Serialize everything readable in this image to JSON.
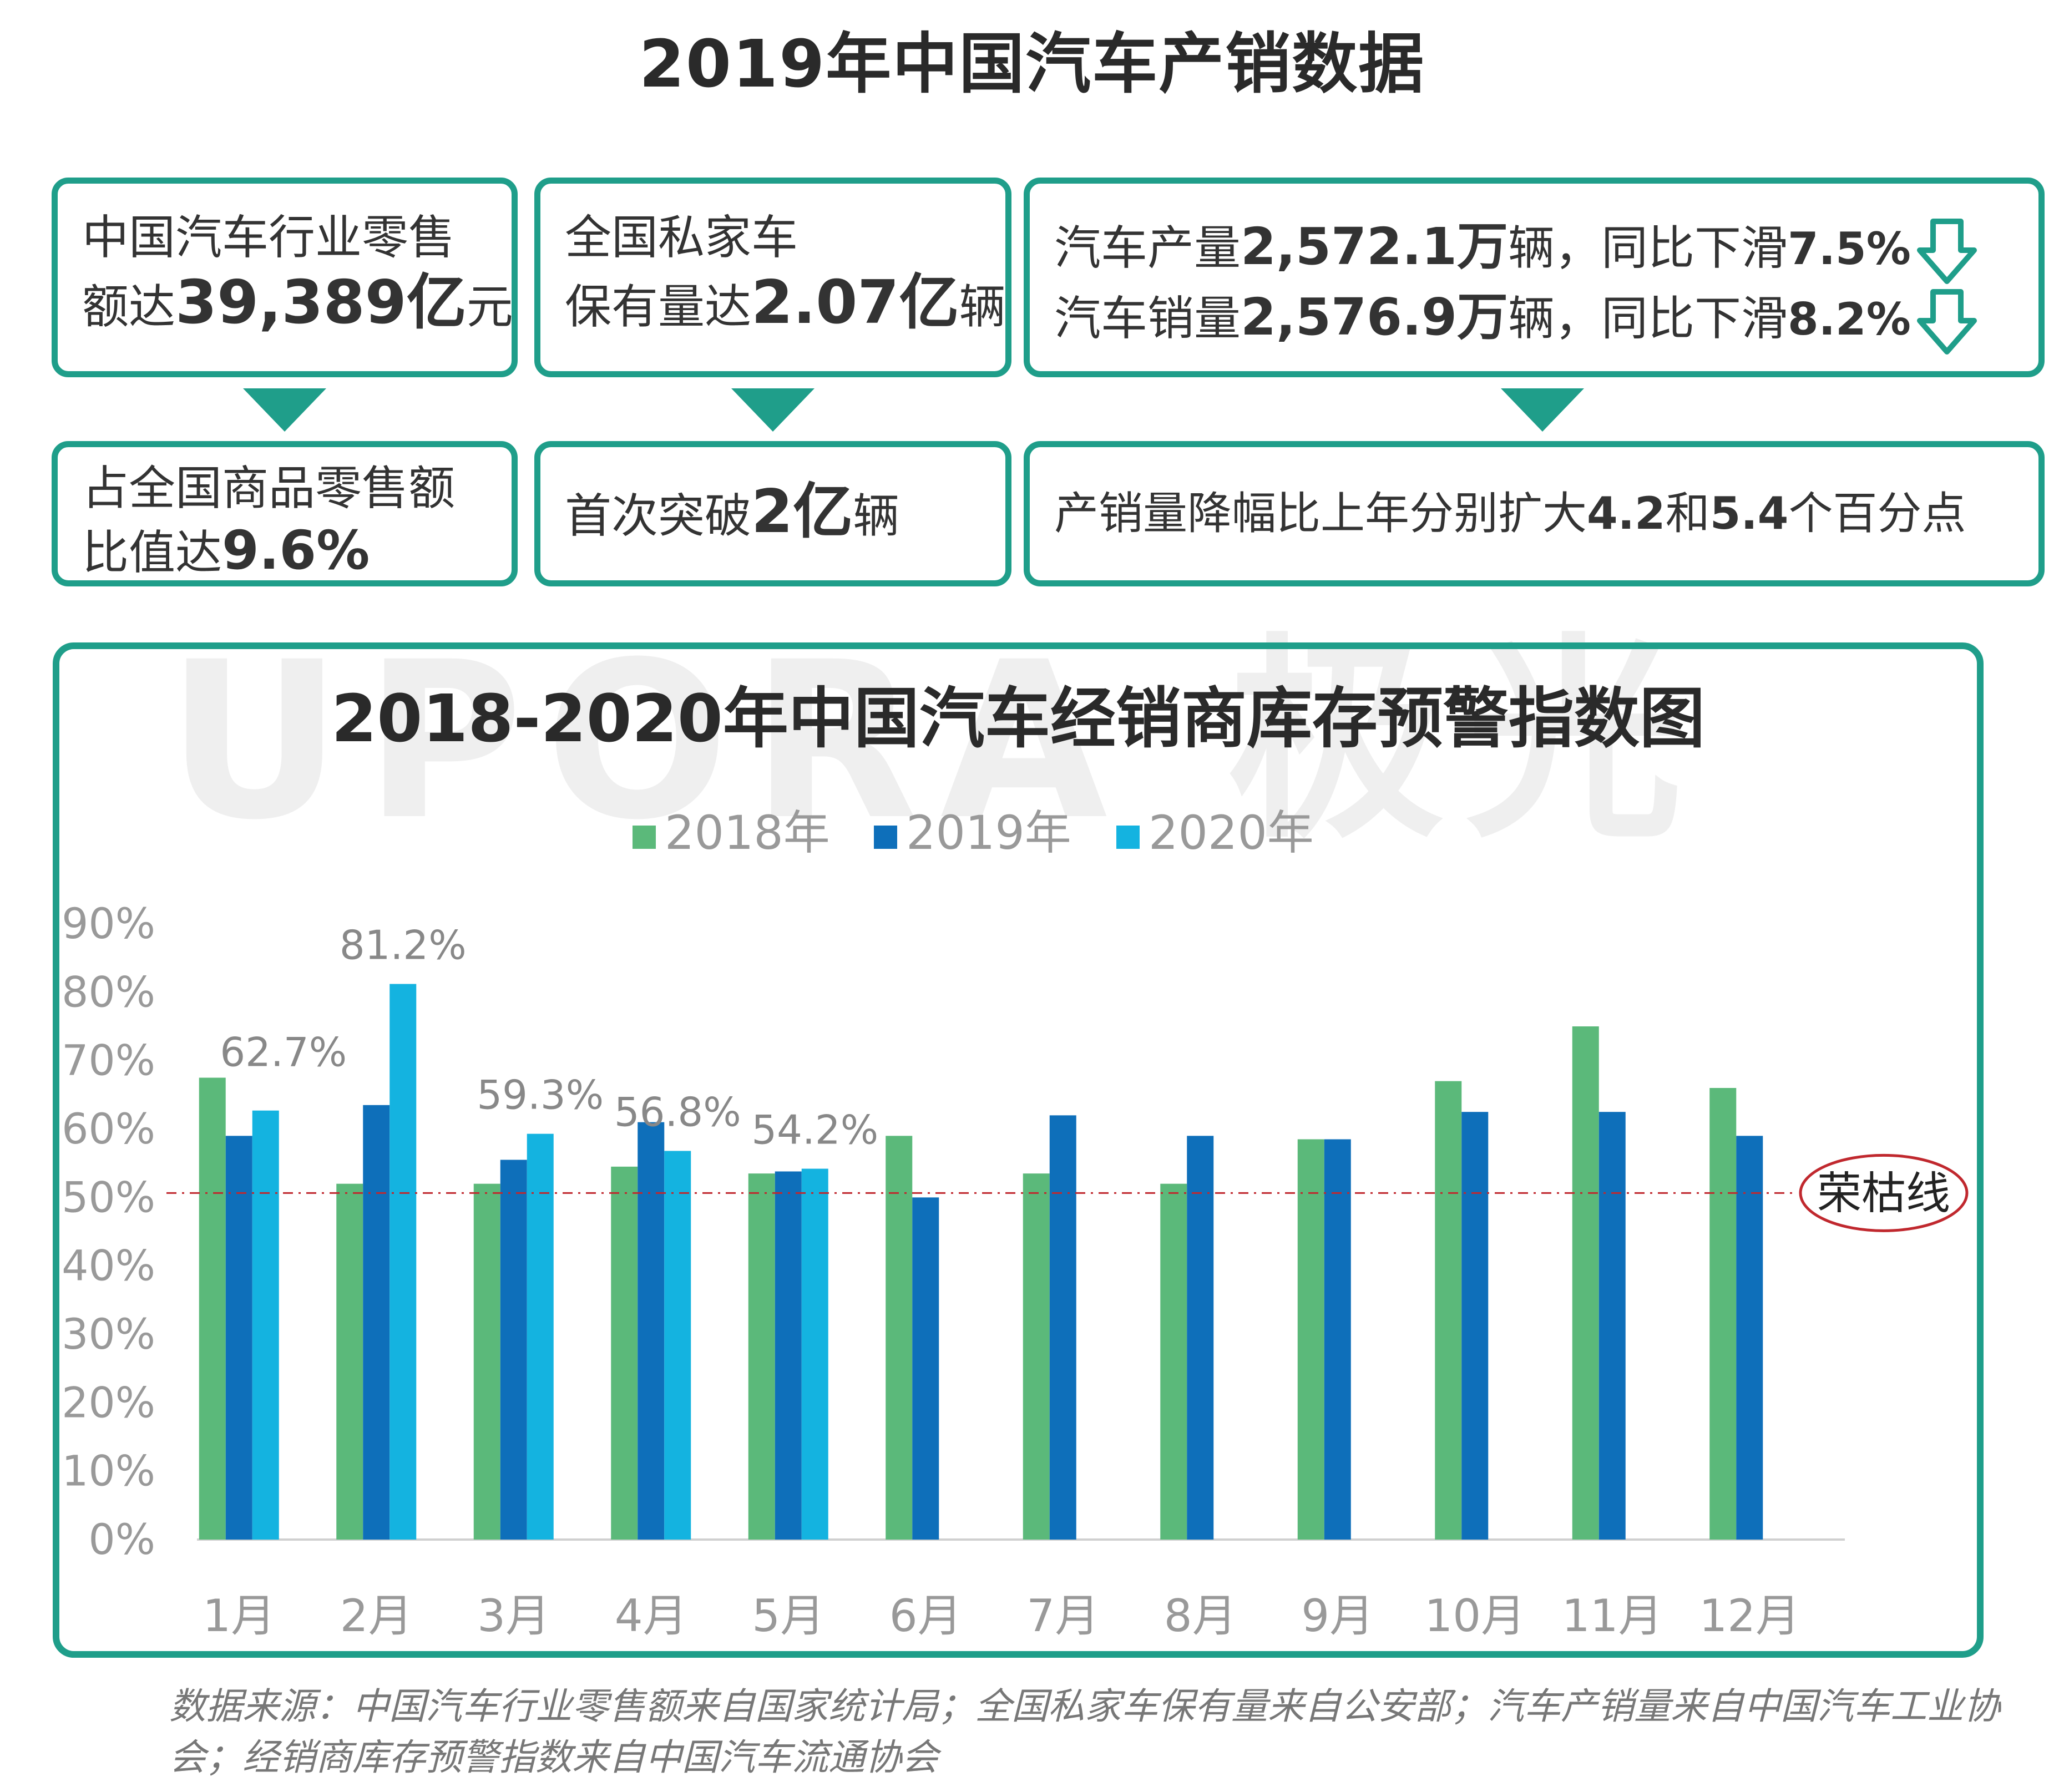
{
  "title": "2019年中国汽车产销数据",
  "cards": {
    "retail": {
      "line1": "中国汽车行业零售",
      "line2_pre": "额达",
      "value": "39,389亿",
      "unit": "元"
    },
    "private": {
      "line1": "全国私家车",
      "line2_pre": "保有量达",
      "value": "2.07亿",
      "unit": "辆"
    },
    "production": {
      "pre": "汽车产量",
      "value": "2,572.1万",
      "suffix": "辆，同比下滑",
      "pct": "7.5%"
    },
    "sales": {
      "pre": "汽车销量",
      "value": "2,576.9万",
      "suffix": "辆，同比下滑",
      "pct": "8.2%"
    },
    "share": {
      "line1": "占全国商品零售额",
      "line2_pre": "比值达",
      "value": "9.6%"
    },
    "breakthrough": {
      "pre": "首次突破",
      "value": "2亿",
      "unit": "辆"
    },
    "decline": {
      "text1": "产销量降幅比上年分别扩大",
      "v1": "4.2",
      "mid": "和",
      "v2": "5.4",
      "text2": "个百分点"
    }
  },
  "watermark": "UPORA 极光",
  "source": "数据来源：中国汽车行业零售额来自国家统计局；全国私家车保有量来自公安部；汽车产销量来自中国汽车工业协会；经销商库存预警指数来自中国汽车流通协会",
  "colors": {
    "teal": "#1f9e8a",
    "s2018": "#5bb97a",
    "s2019": "#0e6fba",
    "s2020": "#14b3e0",
    "threshold": "#c0282e"
  },
  "chart_data": {
    "type": "bar",
    "title": "2018-2020年中国汽车经销商库存预警指数图",
    "categories": [
      "1月",
      "2月",
      "3月",
      "4月",
      "5月",
      "6月",
      "7月",
      "8月",
      "9月",
      "10月",
      "11月",
      "12月"
    ],
    "series": [
      {
        "name": "2018年",
        "values": [
          67.5,
          52.0,
          52.0,
          54.5,
          53.5,
          59.0,
          53.5,
          52.0,
          58.5,
          67.0,
          75.0,
          66.0
        ]
      },
      {
        "name": "2019年",
        "values": [
          59.0,
          63.5,
          55.5,
          61.0,
          53.8,
          50.0,
          62.0,
          59.0,
          58.5,
          62.5,
          62.5,
          59.0
        ]
      },
      {
        "name": "2020年",
        "values": [
          62.7,
          81.2,
          59.3,
          56.8,
          54.2,
          null,
          null,
          null,
          null,
          null,
          null,
          null
        ]
      }
    ],
    "data_labels": [
      {
        "category": "1月",
        "text": "62.7%"
      },
      {
        "category": "2月",
        "text": "81.2%"
      },
      {
        "category": "3月",
        "text": "59.3%"
      },
      {
        "category": "4月",
        "text": "56.8%"
      },
      {
        "category": "5月",
        "text": "54.2%"
      }
    ],
    "threshold": {
      "value": 50,
      "label": "荣枯线"
    },
    "ylim": [
      0,
      90
    ],
    "yticks": [
      "0%",
      "10%",
      "20%",
      "30%",
      "40%",
      "50%",
      "60%",
      "70%",
      "80%",
      "90%"
    ],
    "legend": "top-center"
  }
}
